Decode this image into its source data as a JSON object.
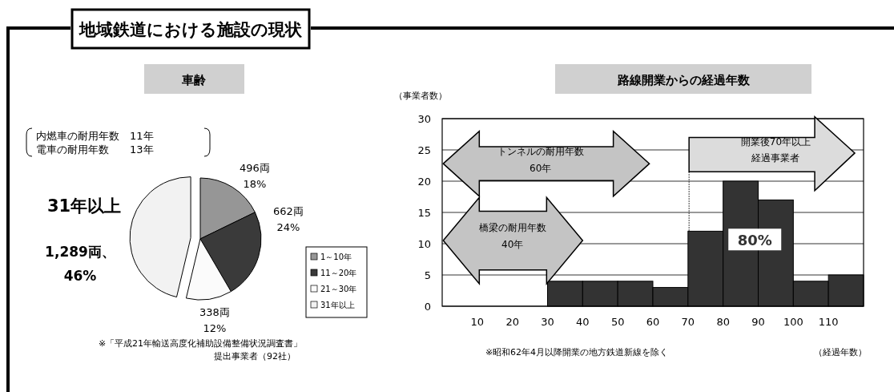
{
  "chart_data": [
    {
      "type": "other",
      "title": "地域鉄道における施設の現状"
    },
    {
      "type": "pie",
      "title": "車齢",
      "categories": [
        "1～10年",
        "11～20年",
        "21～30年",
        "31年以上"
      ],
      "values": [
        496,
        662,
        338,
        1289
      ],
      "colors": [
        "#969696",
        "#3a3a3a",
        "#fbfbfb",
        "#f2f2f2"
      ],
      "value_labels": [
        "496両\n18%",
        "662両\n24%",
        "338両\n12%",
        "1,289両、\n46%"
      ],
      "legend": "right",
      "annotations": [
        "31年以上",
        "内燃車の耐用年数　11年",
        "電車の耐用年数　　13年",
        "※「平成21年輸送高度化補助設備整備状況調査書」",
        "提出事業者（92社）"
      ]
    },
    {
      "type": "histogram",
      "title": "路線開業からの経過年数",
      "ylabel": "（事業者数）",
      "xlabel": "（経過年数）",
      "bins": [
        0,
        10,
        20,
        30,
        40,
        50,
        60,
        70,
        80,
        90,
        100,
        110,
        120
      ],
      "values": [
        0,
        0,
        0,
        4,
        4,
        4,
        3,
        12,
        20,
        17,
        4,
        5
      ],
      "color": "#333333",
      "xlim": [
        0,
        120
      ],
      "xticks": [
        10,
        20,
        30,
        40,
        50,
        60,
        70,
        80,
        90,
        100,
        110
      ],
      "ylim": [
        0,
        30
      ],
      "yticks": [
        0,
        5,
        10,
        15,
        20,
        25,
        30
      ],
      "grid": "y",
      "annotations": [
        "トンネルの耐用年数",
        "60年",
        "橋梁の耐用年数",
        "40年",
        "開業後70年以上",
        "経過事業者",
        "80%",
        "※昭和62年4月以降開業の地方鉄道新線を除く"
      ]
    }
  ]
}
